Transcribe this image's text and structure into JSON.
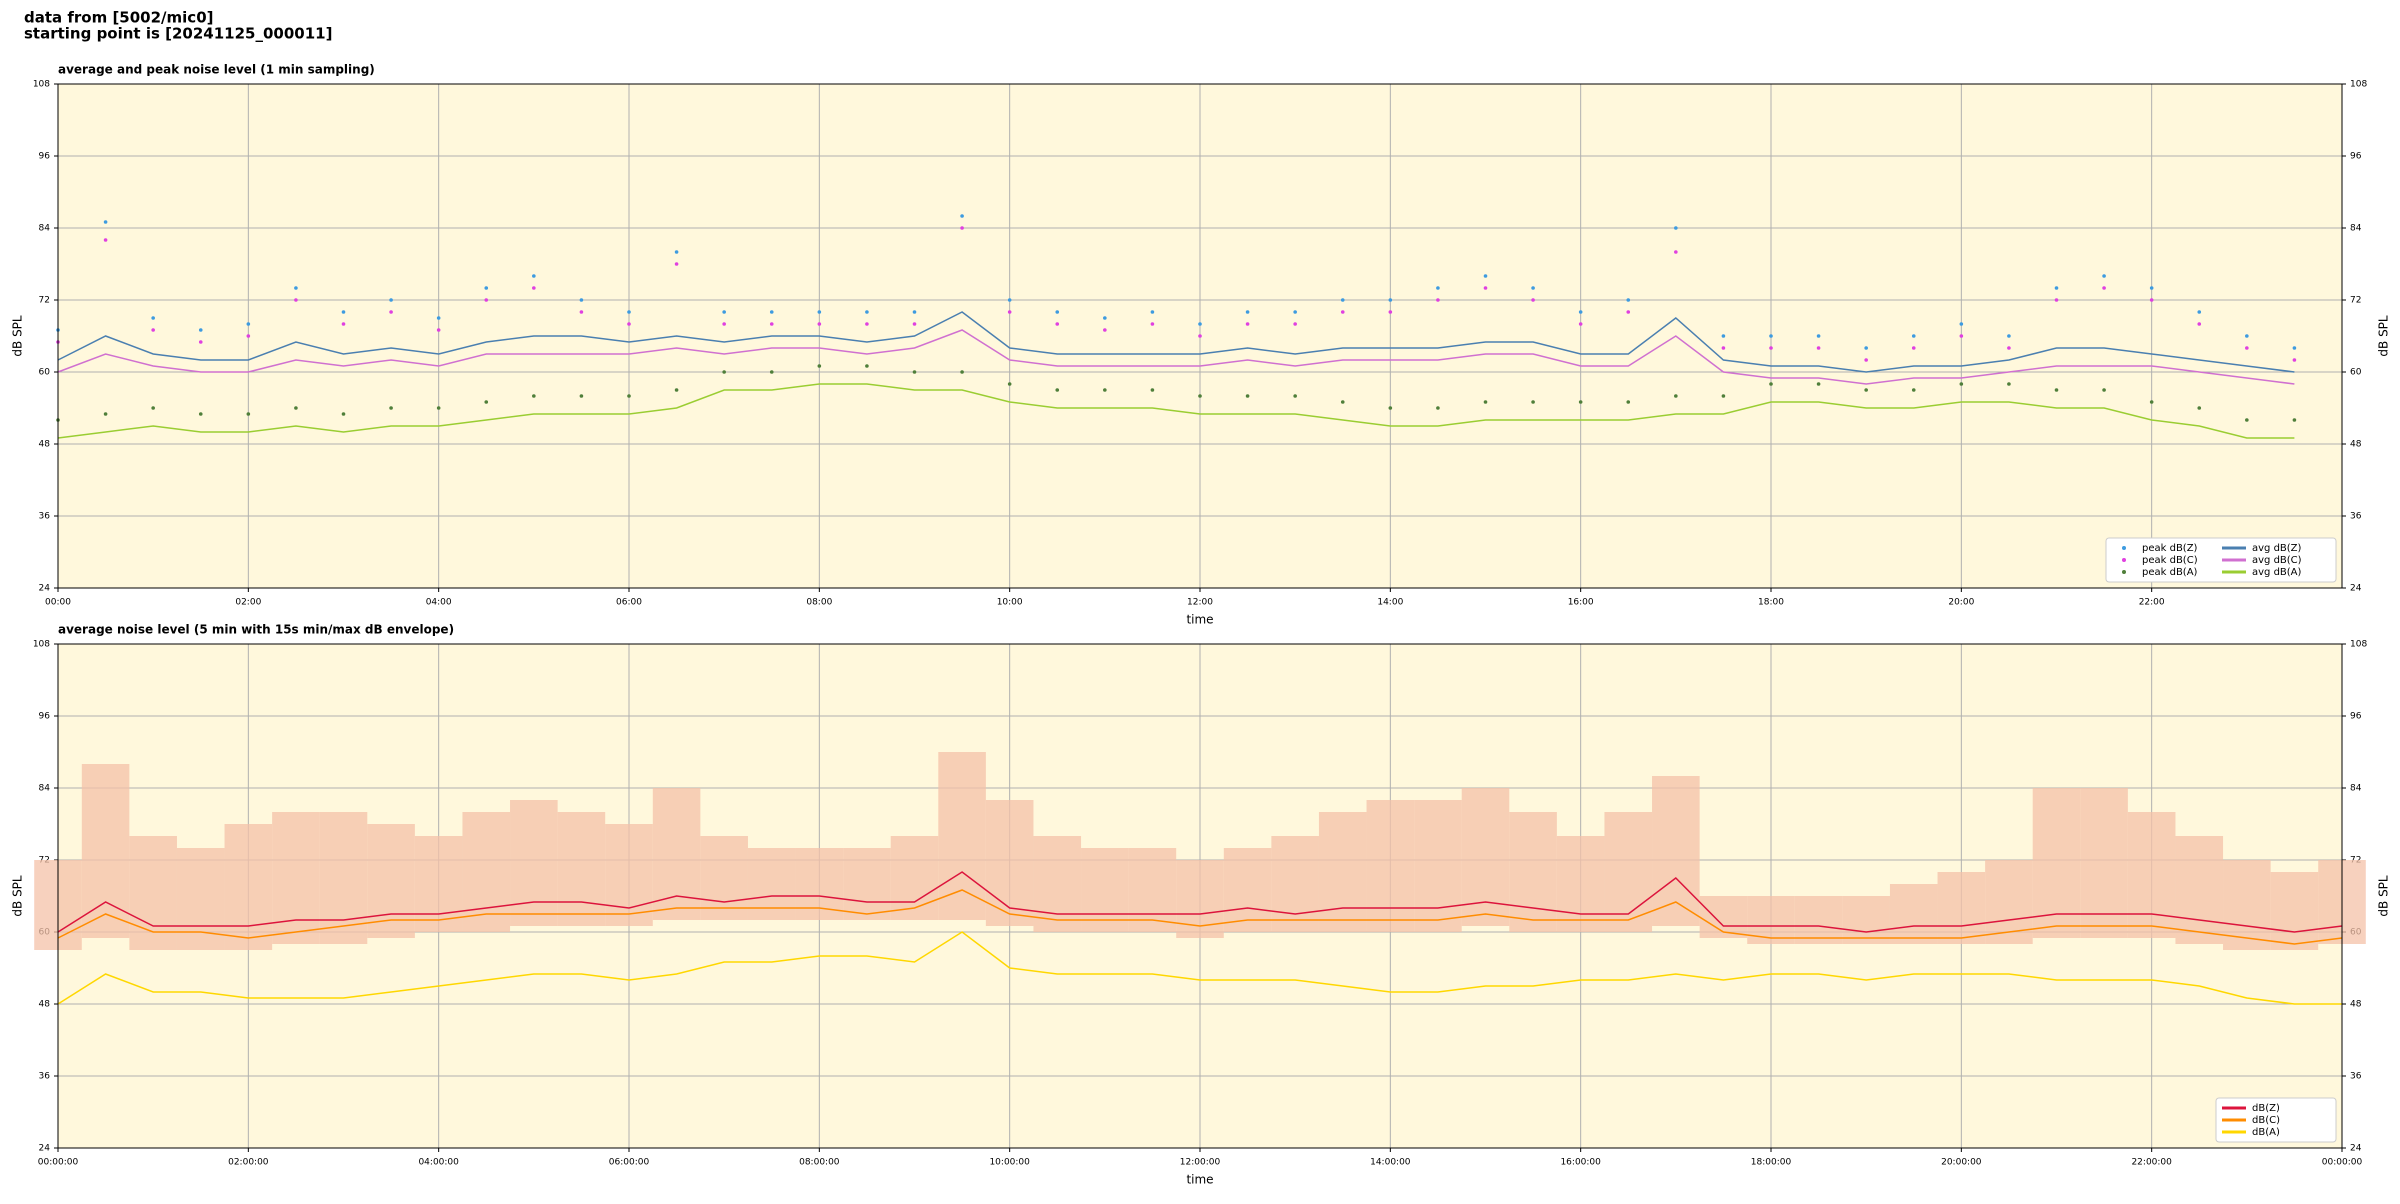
{
  "header": {
    "line1": "data from [5002/mic0]",
    "line2": "starting point is [20241125_000011]"
  },
  "chart_data": [
    {
      "type": "line",
      "title": "average and peak noise level (1 min sampling)",
      "x_label": "time",
      "y_label": "dB SPL",
      "xlim": [
        0,
        24
      ],
      "ylim": [
        24,
        108
      ],
      "yticks": [
        24,
        36,
        48,
        60,
        72,
        84,
        96,
        108
      ],
      "xticks": [
        {
          "value": 0,
          "label": "00:00"
        },
        {
          "value": 2,
          "label": "02:00"
        },
        {
          "value": 4,
          "label": "04:00"
        },
        {
          "value": 6,
          "label": "06:00"
        },
        {
          "value": 8,
          "label": "08:00"
        },
        {
          "value": 10,
          "label": "10:00"
        },
        {
          "value": 12,
          "label": "12:00"
        },
        {
          "value": 14,
          "label": "14:00"
        },
        {
          "value": 16,
          "label": "16:00"
        },
        {
          "value": 18,
          "label": "18:00"
        },
        {
          "value": 20,
          "label": "20:00"
        },
        {
          "value": 22,
          "label": "22:00"
        }
      ],
      "grid": true,
      "background": "#fff8dc",
      "legend": "lower right",
      "legend_columns": 2,
      "x": [
        0,
        0.5,
        1,
        1.5,
        2,
        2.5,
        3,
        3.5,
        4,
        4.5,
        5,
        5.5,
        6,
        6.5,
        7,
        7.5,
        8,
        8.5,
        9,
        9.5,
        10,
        10.5,
        11,
        11.5,
        12,
        12.5,
        13,
        13.5,
        14,
        14.5,
        15,
        15.5,
        16,
        16.5,
        17,
        17.5,
        18,
        18.5,
        19,
        19.5,
        20,
        20.5,
        21,
        21.5,
        22,
        22.5,
        23,
        23.5
      ],
      "series": [
        {
          "name": "peak dB(Z)",
          "type": "scatter",
          "color": "#3d9be0",
          "values": [
            67,
            85,
            69,
            67,
            68,
            74,
            70,
            72,
            69,
            74,
            76,
            72,
            70,
            80,
            70,
            70,
            70,
            70,
            70,
            86,
            72,
            70,
            69,
            70,
            68,
            70,
            70,
            72,
            72,
            74,
            76,
            74,
            70,
            72,
            84,
            66,
            66,
            66,
            64,
            66,
            68,
            66,
            74,
            76,
            74,
            70,
            66,
            64
          ]
        },
        {
          "name": "peak dB(C)",
          "type": "scatter",
          "color": "#e040e0",
          "values": [
            65,
            82,
            67,
            65,
            66,
            72,
            68,
            70,
            67,
            72,
            74,
            70,
            68,
            78,
            68,
            68,
            68,
            68,
            68,
            84,
            70,
            68,
            67,
            68,
            66,
            68,
            68,
            70,
            70,
            72,
            74,
            72,
            68,
            70,
            80,
            64,
            64,
            64,
            62,
            64,
            66,
            64,
            72,
            74,
            72,
            68,
            64,
            62
          ]
        },
        {
          "name": "peak dB(A)",
          "type": "scatter",
          "color": "#4f7f3a",
          "values": [
            52,
            53,
            54,
            53,
            53,
            54,
            53,
            54,
            54,
            55,
            56,
            56,
            56,
            57,
            60,
            60,
            61,
            61,
            60,
            60,
            58,
            57,
            57,
            57,
            56,
            56,
            56,
            55,
            54,
            54,
            55,
            55,
            55,
            55,
            56,
            56,
            58,
            58,
            57,
            57,
            58,
            58,
            57,
            57,
            55,
            54,
            52,
            52
          ]
        },
        {
          "name": "avg dB(Z)",
          "type": "line",
          "color": "#4a7fb0",
          "values": [
            62,
            66,
            63,
            62,
            62,
            65,
            63,
            64,
            63,
            65,
            66,
            66,
            65,
            66,
            65,
            66,
            66,
            65,
            66,
            70,
            64,
            63,
            63,
            63,
            63,
            64,
            63,
            64,
            64,
            64,
            65,
            65,
            63,
            63,
            69,
            62,
            61,
            61,
            60,
            61,
            61,
            62,
            64,
            64,
            63,
            62,
            61,
            60
          ]
        },
        {
          "name": "avg dB(C)",
          "type": "line",
          "color": "#d070d0",
          "values": [
            60,
            63,
            61,
            60,
            60,
            62,
            61,
            62,
            61,
            63,
            63,
            63,
            63,
            64,
            63,
            64,
            64,
            63,
            64,
            67,
            62,
            61,
            61,
            61,
            61,
            62,
            61,
            62,
            62,
            62,
            63,
            63,
            61,
            61,
            66,
            60,
            59,
            59,
            58,
            59,
            59,
            60,
            61,
            61,
            61,
            60,
            59,
            58
          ]
        },
        {
          "name": "avg dB(A)",
          "type": "line",
          "color": "#9acd32",
          "values": [
            49,
            50,
            51,
            50,
            50,
            51,
            50,
            51,
            51,
            52,
            53,
            53,
            53,
            54,
            57,
            57,
            58,
            58,
            57,
            57,
            55,
            54,
            54,
            54,
            53,
            53,
            53,
            52,
            51,
            51,
            52,
            52,
            52,
            52,
            53,
            53,
            55,
            55,
            54,
            54,
            55,
            55,
            54,
            54,
            52,
            51,
            49,
            49
          ]
        }
      ]
    },
    {
      "type": "line",
      "title": "average noise level (5 min with 15s min/max dB envelope)",
      "x_label": "time",
      "y_label": "dB SPL",
      "xlim": [
        0,
        24
      ],
      "ylim": [
        24,
        108
      ],
      "yticks": [
        24,
        36,
        48,
        60,
        72,
        84,
        96,
        108
      ],
      "xticks": [
        {
          "value": 0,
          "label": "00:00:00"
        },
        {
          "value": 2,
          "label": "02:00:00"
        },
        {
          "value": 4,
          "label": "04:00:00"
        },
        {
          "value": 6,
          "label": "06:00:00"
        },
        {
          "value": 8,
          "label": "08:00:00"
        },
        {
          "value": 10,
          "label": "10:00:00"
        },
        {
          "value": 12,
          "label": "12:00:00"
        },
        {
          "value": 14,
          "label": "14:00:00"
        },
        {
          "value": 16,
          "label": "16:00:00"
        },
        {
          "value": 18,
          "label": "18:00:00"
        },
        {
          "value": 20,
          "label": "20:00:00"
        },
        {
          "value": 22,
          "label": "22:00:00"
        },
        {
          "value": 24,
          "label": "00:00:00"
        }
      ],
      "grid": true,
      "background": "#fff8dc",
      "legend": "lower right",
      "legend_columns": 1,
      "x": [
        0,
        0.5,
        1,
        1.5,
        2,
        2.5,
        3,
        3.5,
        4,
        4.5,
        5,
        5.5,
        6,
        6.5,
        7,
        7.5,
        8,
        8.5,
        9,
        9.5,
        10,
        10.5,
        11,
        11.5,
        12,
        12.5,
        13,
        13.5,
        14,
        14.5,
        15,
        15.5,
        16,
        16.5,
        17,
        17.5,
        18,
        18.5,
        19,
        19.5,
        20,
        20.5,
        21,
        21.5,
        22,
        22.5,
        23,
        23.5,
        24
      ],
      "envelope": {
        "color": "#f4c2a8",
        "lower": [
          57,
          59,
          57,
          57,
          57,
          58,
          58,
          59,
          60,
          60,
          61,
          61,
          61,
          62,
          62,
          62,
          62,
          62,
          62,
          62,
          61,
          60,
          60,
          60,
          59,
          60,
          60,
          60,
          60,
          60,
          61,
          60,
          60,
          60,
          61,
          59,
          58,
          58,
          58,
          58,
          58,
          58,
          59,
          59,
          59,
          58,
          57,
          57,
          58
        ],
        "upper": [
          72,
          88,
          76,
          74,
          78,
          80,
          80,
          78,
          76,
          80,
          82,
          80,
          78,
          84,
          76,
          74,
          74,
          74,
          76,
          90,
          82,
          76,
          74,
          74,
          72,
          74,
          76,
          80,
          82,
          82,
          84,
          80,
          76,
          80,
          86,
          66,
          66,
          66,
          66,
          68,
          70,
          72,
          84,
          84,
          80,
          76,
          72,
          70,
          72
        ]
      },
      "series": [
        {
          "name": "dB(Z)",
          "type": "line",
          "color": "#dc143c",
          "values": [
            60,
            65,
            61,
            61,
            61,
            62,
            62,
            63,
            63,
            64,
            65,
            65,
            64,
            66,
            65,
            66,
            66,
            65,
            65,
            70,
            64,
            63,
            63,
            63,
            63,
            64,
            63,
            64,
            64,
            64,
            65,
            64,
            63,
            63,
            69,
            61,
            61,
            61,
            60,
            61,
            61,
            62,
            63,
            63,
            63,
            62,
            61,
            60,
            61
          ]
        },
        {
          "name": "dB(C)",
          "type": "line",
          "color": "#ff8c00",
          "values": [
            59,
            63,
            60,
            60,
            59,
            60,
            61,
            62,
            62,
            63,
            63,
            63,
            63,
            64,
            64,
            64,
            64,
            63,
            64,
            67,
            63,
            62,
            62,
            62,
            61,
            62,
            62,
            62,
            62,
            62,
            63,
            62,
            62,
            62,
            65,
            60,
            59,
            59,
            59,
            59,
            59,
            60,
            61,
            61,
            61,
            60,
            59,
            58,
            59
          ]
        },
        {
          "name": "dB(A)",
          "type": "line",
          "color": "#ffd700",
          "values": [
            48,
            53,
            50,
            50,
            49,
            49,
            49,
            50,
            51,
            52,
            53,
            53,
            52,
            53,
            55,
            55,
            56,
            56,
            55,
            60,
            54,
            53,
            53,
            53,
            52,
            52,
            52,
            51,
            50,
            50,
            51,
            51,
            52,
            52,
            53,
            52,
            53,
            53,
            52,
            53,
            53,
            53,
            52,
            52,
            52,
            51,
            49,
            48,
            48
          ]
        }
      ]
    }
  ]
}
